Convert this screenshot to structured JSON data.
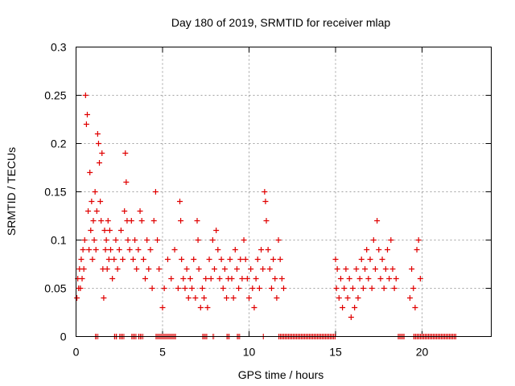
{
  "chart_data": {
    "type": "scatter",
    "title": "Day 180 of 2019, SRMTID for receiver mlap",
    "xlabel": "GPS time / hours",
    "ylabel": "SRMTID / TECUs",
    "xlim": [
      0,
      24
    ],
    "ylim": [
      0,
      0.3
    ],
    "xticks": [
      0,
      5,
      10,
      15,
      20
    ],
    "xtick_labels": [
      "0",
      "5",
      "10",
      "15",
      "20"
    ],
    "yticks": [
      0,
      0.05,
      0.1,
      0.15,
      0.2,
      0.25,
      0.3
    ],
    "ytick_labels": [
      "0",
      "0.05",
      "0.1",
      "0.15",
      "0.2",
      "0.25",
      "0.3"
    ],
    "grid": true,
    "marker": "+",
    "colors": {
      "series": "#e00000",
      "axis": "#000000",
      "grid": "#a0a0a0"
    },
    "series": [
      {
        "name": "SRMTID",
        "points": [
          [
            0.05,
            0.04
          ],
          [
            0.1,
            0.06
          ],
          [
            0.15,
            0.05
          ],
          [
            0.2,
            0.07
          ],
          [
            0.25,
            0.05
          ],
          [
            0.3,
            0.08
          ],
          [
            0.35,
            0.06
          ],
          [
            0.4,
            0.09
          ],
          [
            0.45,
            0.07
          ],
          [
            0.5,
            0.1
          ],
          [
            0.55,
            0.25
          ],
          [
            0.6,
            0.22
          ],
          [
            0.65,
            0.23
          ],
          [
            0.7,
            0.13
          ],
          [
            0.75,
            0.09
          ],
          [
            0.8,
            0.17
          ],
          [
            0.85,
            0.11
          ],
          [
            0.9,
            0.14
          ],
          [
            0.95,
            0.08
          ],
          [
            1.0,
            0.12
          ],
          [
            1.05,
            0.1
          ],
          [
            1.1,
            0.15
          ],
          [
            1.15,
            0.09
          ],
          [
            1.2,
            0.13
          ],
          [
            1.25,
            0.21
          ],
          [
            1.3,
            0.2
          ],
          [
            1.35,
            0.18
          ],
          [
            1.4,
            0.14
          ],
          [
            1.45,
            0.12
          ],
          [
            1.5,
            0.19
          ],
          [
            1.55,
            0.07
          ],
          [
            1.6,
            0.04
          ],
          [
            1.65,
            0.11
          ],
          [
            1.7,
            0.09
          ],
          [
            1.75,
            0.1
          ],
          [
            1.8,
            0.07
          ],
          [
            1.85,
            0.12
          ],
          [
            1.9,
            0.08
          ],
          [
            1.95,
            0.11
          ],
          [
            2.0,
            0.09
          ],
          [
            2.1,
            0.06
          ],
          [
            2.2,
            0.08
          ],
          [
            2.3,
            0.1
          ],
          [
            2.4,
            0.07
          ],
          [
            2.5,
            0.09
          ],
          [
            2.6,
            0.11
          ],
          [
            2.7,
            0.08
          ],
          [
            2.8,
            0.13
          ],
          [
            2.85,
            0.19
          ],
          [
            2.9,
            0.16
          ],
          [
            2.95,
            0.12
          ],
          [
            3.0,
            0.1
          ],
          [
            3.1,
            0.09
          ],
          [
            3.2,
            0.12
          ],
          [
            3.3,
            0.08
          ],
          [
            3.4,
            0.1
          ],
          [
            3.5,
            0.07
          ],
          [
            3.6,
            0.09
          ],
          [
            3.7,
            0.13
          ],
          [
            3.8,
            0.12
          ],
          [
            3.9,
            0.08
          ],
          [
            4.0,
            0.06
          ],
          [
            4.1,
            0.1
          ],
          [
            4.2,
            0.07
          ],
          [
            4.3,
            0.09
          ],
          [
            4.4,
            0.05
          ],
          [
            4.5,
            0.12
          ],
          [
            4.6,
            0.15
          ],
          [
            4.7,
            0.1
          ],
          [
            4.8,
            0.07
          ],
          [
            5.0,
            0.03
          ],
          [
            5.1,
            0.05
          ],
          [
            5.3,
            0.08
          ],
          [
            5.5,
            0.06
          ],
          [
            5.7,
            0.09
          ],
          [
            5.9,
            0.05
          ],
          [
            6.0,
            0.14
          ],
          [
            6.05,
            0.12
          ],
          [
            6.1,
            0.08
          ],
          [
            6.2,
            0.06
          ],
          [
            6.3,
            0.05
          ],
          [
            6.4,
            0.07
          ],
          [
            6.5,
            0.04
          ],
          [
            6.6,
            0.06
          ],
          [
            6.7,
            0.05
          ],
          [
            6.8,
            0.08
          ],
          [
            6.9,
            0.04
          ],
          [
            7.0,
            0.12
          ],
          [
            7.05,
            0.1
          ],
          [
            7.1,
            0.07
          ],
          [
            7.2,
            0.03
          ],
          [
            7.3,
            0.05
          ],
          [
            7.4,
            0.04
          ],
          [
            7.5,
            0.06
          ],
          [
            7.6,
            0.03
          ],
          [
            7.7,
            0.08
          ],
          [
            7.8,
            0.06
          ],
          [
            7.9,
            0.1
          ],
          [
            8.0,
            0.07
          ],
          [
            8.1,
            0.11
          ],
          [
            8.2,
            0.09
          ],
          [
            8.3,
            0.06
          ],
          [
            8.4,
            0.08
          ],
          [
            8.5,
            0.05
          ],
          [
            8.6,
            0.07
          ],
          [
            8.7,
            0.04
          ],
          [
            8.8,
            0.06
          ],
          [
            8.9,
            0.08
          ],
          [
            9.0,
            0.06
          ],
          [
            9.1,
            0.04
          ],
          [
            9.2,
            0.09
          ],
          [
            9.3,
            0.07
          ],
          [
            9.4,
            0.05
          ],
          [
            9.5,
            0.08
          ],
          [
            9.6,
            0.06
          ],
          [
            9.7,
            0.1
          ],
          [
            9.8,
            0.08
          ],
          [
            9.9,
            0.06
          ],
          [
            10.0,
            0.04
          ],
          [
            10.1,
            0.07
          ],
          [
            10.2,
            0.05
          ],
          [
            10.3,
            0.03
          ],
          [
            10.4,
            0.06
          ],
          [
            10.5,
            0.08
          ],
          [
            10.6,
            0.05
          ],
          [
            10.7,
            0.09
          ],
          [
            10.8,
            0.07
          ],
          [
            10.9,
            0.15
          ],
          [
            10.95,
            0.14
          ],
          [
            11.0,
            0.12
          ],
          [
            11.1,
            0.09
          ],
          [
            11.2,
            0.07
          ],
          [
            11.3,
            0.05
          ],
          [
            11.4,
            0.08
          ],
          [
            11.5,
            0.06
          ],
          [
            11.6,
            0.04
          ],
          [
            11.7,
            0.1
          ],
          [
            11.8,
            0.08
          ],
          [
            11.9,
            0.06
          ],
          [
            12.0,
            0.05
          ],
          [
            15.0,
            0.08
          ],
          [
            15.05,
            0.05
          ],
          [
            15.1,
            0.07
          ],
          [
            15.2,
            0.04
          ],
          [
            15.3,
            0.06
          ],
          [
            15.4,
            0.03
          ],
          [
            15.5,
            0.05
          ],
          [
            15.6,
            0.07
          ],
          [
            15.7,
            0.04
          ],
          [
            15.8,
            0.06
          ],
          [
            15.9,
            0.02
          ],
          [
            16.0,
            0.05
          ],
          [
            16.1,
            0.03
          ],
          [
            16.2,
            0.07
          ],
          [
            16.3,
            0.04
          ],
          [
            16.4,
            0.06
          ],
          [
            16.5,
            0.08
          ],
          [
            16.6,
            0.05
          ],
          [
            16.7,
            0.07
          ],
          [
            16.8,
            0.09
          ],
          [
            16.9,
            0.06
          ],
          [
            17.0,
            0.08
          ],
          [
            17.1,
            0.05
          ],
          [
            17.2,
            0.1
          ],
          [
            17.3,
            0.07
          ],
          [
            17.4,
            0.12
          ],
          [
            17.5,
            0.09
          ],
          [
            17.6,
            0.06
          ],
          [
            17.7,
            0.08
          ],
          [
            17.8,
            0.05
          ],
          [
            17.9,
            0.07
          ],
          [
            18.0,
            0.09
          ],
          [
            18.1,
            0.06
          ],
          [
            18.2,
            0.1
          ],
          [
            18.3,
            0.07
          ],
          [
            18.4,
            0.05
          ],
          [
            18.5,
            0.06
          ],
          [
            19.3,
            0.04
          ],
          [
            19.4,
            0.07
          ],
          [
            19.5,
            0.05
          ],
          [
            19.6,
            0.03
          ],
          [
            19.7,
            0.09
          ],
          [
            19.8,
            0.1
          ],
          [
            19.9,
            0.06
          ]
        ]
      }
    ],
    "zero_segments": [
      [
        1.1,
        1.3
      ],
      [
        2.2,
        2.4
      ],
      [
        2.5,
        2.8
      ],
      [
        3.2,
        3.5
      ],
      [
        3.6,
        3.9
      ],
      [
        4.6,
        5.8
      ],
      [
        7.3,
        7.6
      ],
      [
        7.9,
        8.0
      ],
      [
        8.7,
        8.9
      ],
      [
        9.3,
        9.5
      ],
      [
        10.8,
        10.85
      ],
      [
        11.7,
        15.0
      ],
      [
        18.6,
        19.0
      ],
      [
        19.5,
        22.0
      ]
    ]
  }
}
